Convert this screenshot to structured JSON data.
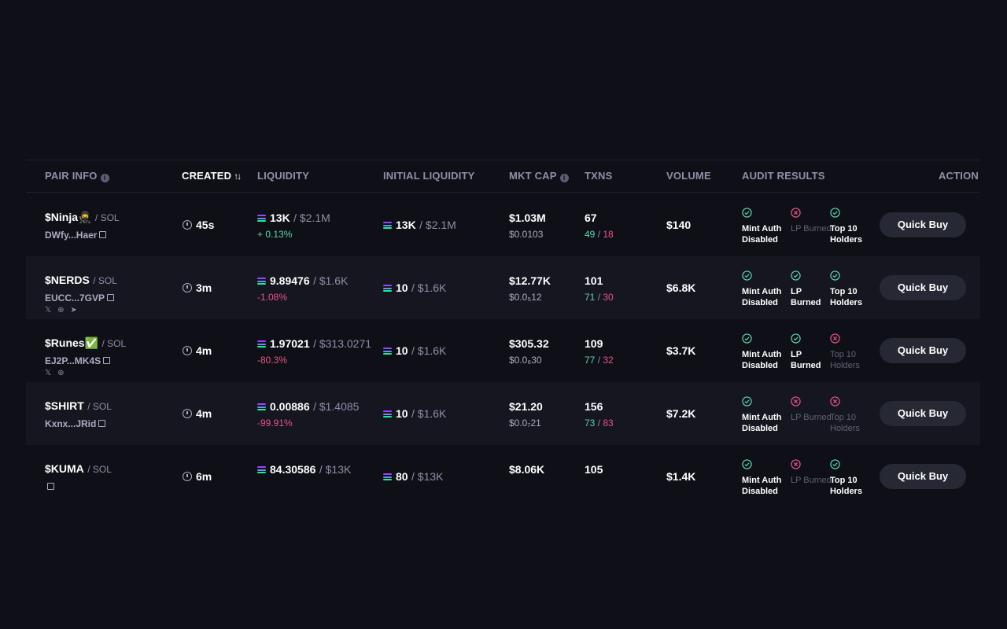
{
  "headers": {
    "pair_info": "PAIR INFO",
    "created": "CREATED",
    "created_sort": "↑↓",
    "liquidity": "LIQUIDITY",
    "initial_liquidity": "INITIAL LIQUIDITY",
    "mkt_cap": "MKT CAP",
    "txns": "TXNS",
    "volume": "VOLUME",
    "audit_results": "AUDIT RESULTS",
    "action": "ACTION"
  },
  "colors": {
    "positive": "#5ed3b0",
    "negative": "#e8548c",
    "background": "#0f1017",
    "row_alt": "#15161f"
  },
  "rows": [
    {
      "symbol": "$Ninja🥷",
      "chain": "/ SOL",
      "address": "DWfy...Haer",
      "socials": [],
      "age": "45s",
      "liq_sol": "13K",
      "liq_usd": "/ $2.1M",
      "liq_change": "+ 0.13%",
      "liq_change_dir": "up",
      "init_sol": "13K",
      "init_usd": "/ $2.1M",
      "mcap": "$1.03M",
      "price": "$0.0103",
      "txns": "67",
      "buys": "49",
      "sells": "18",
      "volume": "$140",
      "audit": [
        {
          "label": "Mint Auth Disabled",
          "ok": true
        },
        {
          "label": "LP Burned",
          "ok": false
        },
        {
          "label": "Top 10 Holders",
          "ok": true
        }
      ],
      "action": "Quick Buy"
    },
    {
      "symbol": "$NERDS",
      "chain": "/ SOL",
      "address": "EUCC...7GVP",
      "socials": [
        "x-icon",
        "globe-icon",
        "telegram-icon"
      ],
      "age": "3m",
      "liq_sol": "9.89476",
      "liq_usd": "/ $1.6K",
      "liq_change": "-1.08%",
      "liq_change_dir": "down",
      "init_sol": "10",
      "init_usd": "/ $1.6K",
      "mcap": "$12.77K",
      "price": "$0.0₅12",
      "txns": "101",
      "buys": "71",
      "sells": "30",
      "volume": "$6.8K",
      "audit": [
        {
          "label": "Mint Auth Disabled",
          "ok": true
        },
        {
          "label": "LP Burned",
          "ok": true
        },
        {
          "label": "Top 10 Holders",
          "ok": true
        }
      ],
      "action": "Quick Buy"
    },
    {
      "symbol": "$Runes✅",
      "chain": "/ SOL",
      "address": "EJ2P...MK4S",
      "socials": [
        "x-icon",
        "globe-icon"
      ],
      "age": "4m",
      "liq_sol": "1.97021",
      "liq_usd": "/ $313.0271",
      "liq_change": "-80.3%",
      "liq_change_dir": "down",
      "init_sol": "10",
      "init_usd": "/ $1.6K",
      "mcap": "$305.32",
      "price": "$0.0₆30",
      "txns": "109",
      "buys": "77",
      "sells": "32",
      "volume": "$3.7K",
      "audit": [
        {
          "label": "Mint Auth Disabled",
          "ok": true
        },
        {
          "label": "LP Burned",
          "ok": true
        },
        {
          "label": "Top 10 Holders",
          "ok": false
        }
      ],
      "action": "Quick Buy"
    },
    {
      "symbol": "$SHIRT",
      "chain": "/ SOL",
      "address": "Kxnx...JRid",
      "socials": [],
      "age": "4m",
      "liq_sol": "0.00886",
      "liq_usd": "/ $1.4085",
      "liq_change": "-99.91%",
      "liq_change_dir": "down",
      "init_sol": "10",
      "init_usd": "/ $1.6K",
      "mcap": "$21.20",
      "price": "$0.0₇21",
      "txns": "156",
      "buys": "73",
      "sells": "83",
      "volume": "$7.2K",
      "audit": [
        {
          "label": "Mint Auth Disabled",
          "ok": true
        },
        {
          "label": "LP Burned",
          "ok": false
        },
        {
          "label": "Top 10 Holders",
          "ok": false
        }
      ],
      "action": "Quick Buy"
    },
    {
      "symbol": "$KUMA",
      "chain": "/ SOL",
      "address": "",
      "socials": [],
      "age": "6m",
      "liq_sol": "84.30586",
      "liq_usd": "/ $13K",
      "liq_change": "",
      "liq_change_dir": "up",
      "init_sol": "80",
      "init_usd": "/ $13K",
      "mcap": "$8.06K",
      "price": "",
      "txns": "105",
      "buys": "",
      "sells": "",
      "volume": "$1.4K",
      "audit": [
        {
          "label": "Mint Auth Disabled",
          "ok": true
        },
        {
          "label": "LP Burned",
          "ok": false
        },
        {
          "label": "Top 10 Holders",
          "ok": true
        }
      ],
      "action": "Quick Buy"
    }
  ]
}
